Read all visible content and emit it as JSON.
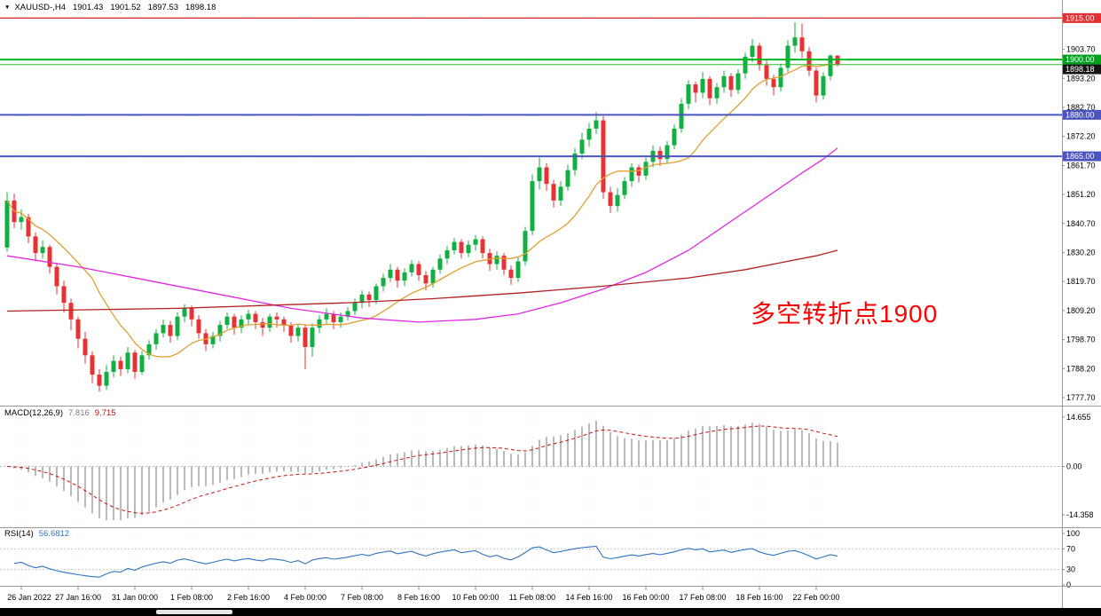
{
  "chart": {
    "title": {
      "triangle": "▼",
      "symbol": "XAUUSD-,H4",
      "open": "1901.43",
      "high": "1901.52",
      "low": "1897.53",
      "close": "1898.18"
    },
    "annotation": {
      "text": "多空转折点1900",
      "color": "#ff0000"
    }
  },
  "chart_data": {
    "type": "candlestick",
    "title": "XAUUSD-,H4",
    "up_color": "#10b040",
    "down_color": "#e63232",
    "y_range": {
      "min": 1776.4,
      "max": 1916.4
    },
    "y_tick_labels": [
      "1903.70",
      "1893.20",
      "1882.70",
      "1872.20",
      "1861.70",
      "1851.20",
      "1840.70",
      "1830.20",
      "1819.70",
      "1809.20",
      "1798.70",
      "1788.20",
      "1777.70"
    ],
    "x_tick_labels": [
      "26 Jan 2022",
      "27 Jan 16:00",
      "31 Jan 00:00",
      "1 Feb 08:00",
      "2 Feb 16:00",
      "4 Feb 00:00",
      "7 Feb 08:00",
      "8 Feb 16:00",
      "10 Feb 00:00",
      "11 Feb 08:00",
      "14 Feb 16:00",
      "16 Feb 00:00",
      "17 Feb 08:00",
      "18 Feb 16:00",
      "22 Feb 00:00"
    ],
    "hlines": [
      {
        "price": 1915.0,
        "label": "1915.00",
        "color": "#e03232",
        "width": 1.4,
        "badge_bg": "#e03232",
        "badge_fg": "#ffffff"
      },
      {
        "price": 1900.0,
        "label": "1900.00",
        "color": "#00b41e",
        "width": 2,
        "badge_bg": "#00a01e",
        "badge_fg": "#ffffff"
      },
      {
        "price": 1898.18,
        "label": "1898.18",
        "color": "#2eb82e",
        "width": 1,
        "badge_bg": "#141414",
        "badge_fg": "#ffffff"
      },
      {
        "price": 1880.0,
        "label": "1880.00",
        "color": "#4a55c0",
        "width": 2,
        "badge_bg": "#4a55c0",
        "badge_fg": "#ffffff"
      },
      {
        "price": 1865.0,
        "label": "1865.00",
        "color": "#4a55c0",
        "width": 2,
        "badge_bg": "#4a55c0",
        "badge_fg": "#ffffff"
      }
    ],
    "ma_lines": [
      {
        "name": "ma-fast",
        "method": "sma",
        "period": 13,
        "color": "#e0a030"
      },
      {
        "name": "ma-mid",
        "color": "#e228e2",
        "points": [
          [
            0,
            1829
          ],
          [
            10,
            1825
          ],
          [
            20,
            1820
          ],
          [
            30,
            1815
          ],
          [
            40,
            1810
          ],
          [
            50,
            1806.5
          ],
          [
            58,
            1805
          ],
          [
            66,
            1806
          ],
          [
            72,
            1808
          ],
          [
            78,
            1812
          ],
          [
            84,
            1817
          ],
          [
            90,
            1823
          ],
          [
            96,
            1831
          ],
          [
            100,
            1838
          ],
          [
            104,
            1845
          ],
          [
            108,
            1852
          ],
          [
            112,
            1859
          ],
          [
            115,
            1864
          ],
          [
            117,
            1868
          ]
        ]
      },
      {
        "name": "ma-slow",
        "color": "#b22222",
        "points": [
          [
            0,
            1809
          ],
          [
            12,
            1809.5
          ],
          [
            24,
            1810
          ],
          [
            36,
            1811
          ],
          [
            48,
            1812
          ],
          [
            60,
            1813.5
          ],
          [
            72,
            1815.5
          ],
          [
            84,
            1818
          ],
          [
            96,
            1821
          ],
          [
            104,
            1824
          ],
          [
            110,
            1827
          ],
          [
            114,
            1829
          ],
          [
            117,
            1831
          ]
        ]
      }
    ],
    "macd": {
      "label": "MACD(12,26,9)",
      "value1": "7.816",
      "value2": "9.715",
      "fast": 12,
      "slow": 26,
      "signal": 9,
      "ylim": 17,
      "hist_color": "#a8a8a8",
      "signal_color": "#cc1111",
      "axis_labels": [
        {
          "text": "14.655",
          "value": 14.655
        },
        {
          "text": "0.00",
          "value": 0
        },
        {
          "text": "-14.358",
          "value": -14.358
        }
      ]
    },
    "rsi": {
      "label": "RSI(14)",
      "value": "56.6812",
      "period": 14,
      "color": "#2f74c0",
      "levels": [
        70,
        30
      ],
      "axis_labels": [
        {
          "text": "100",
          "value": 100
        },
        {
          "text": "70",
          "value": 70
        },
        {
          "text": "30",
          "value": 30
        },
        {
          "text": "0",
          "value": 0
        }
      ]
    },
    "candles": [
      [
        1832.0,
        1852.0,
        1830.5,
        1849.0
      ],
      [
        1849.0,
        1851.5,
        1839.0,
        1841.2
      ],
      [
        1841.2,
        1845.8,
        1838.5,
        1843.0
      ],
      [
        1843.0,
        1844.2,
        1833.5,
        1836.0
      ],
      [
        1836.0,
        1837.5,
        1827.0,
        1830.0
      ],
      [
        1830.0,
        1834.5,
        1828.0,
        1832.2
      ],
      [
        1832.2,
        1833.0,
        1822.5,
        1825.0
      ],
      [
        1825.0,
        1826.5,
        1815.0,
        1818.0
      ],
      [
        1818.0,
        1820.0,
        1808.5,
        1812.0
      ],
      [
        1812.0,
        1813.5,
        1802.0,
        1806.0
      ],
      [
        1806.0,
        1807.0,
        1795.5,
        1799.0
      ],
      [
        1799.0,
        1801.5,
        1790.0,
        1793.0
      ],
      [
        1793.0,
        1794.5,
        1783.0,
        1786.0
      ],
      [
        1786.0,
        1788.0,
        1779.8,
        1782.0
      ],
      [
        1782.0,
        1789.5,
        1780.5,
        1787.0
      ],
      [
        1787.0,
        1793.0,
        1785.0,
        1791.0
      ],
      [
        1791.0,
        1792.5,
        1785.5,
        1788.0
      ],
      [
        1788.0,
        1796.0,
        1786.5,
        1794.0
      ],
      [
        1794.0,
        1795.0,
        1784.5,
        1787.0
      ],
      [
        1787.0,
        1794.5,
        1786.0,
        1793.0
      ],
      [
        1793.0,
        1798.5,
        1791.5,
        1797.0
      ],
      [
        1797.0,
        1802.5,
        1795.0,
        1801.0
      ],
      [
        1801.0,
        1806.0,
        1799.5,
        1804.0
      ],
      [
        1804.0,
        1805.5,
        1797.5,
        1800.0
      ],
      [
        1800.0,
        1808.5,
        1798.5,
        1807.0
      ],
      [
        1807.0,
        1811.5,
        1805.0,
        1810.0
      ],
      [
        1810.0,
        1811.0,
        1803.5,
        1806.0
      ],
      [
        1806.0,
        1807.5,
        1799.0,
        1801.0
      ],
      [
        1801.0,
        1802.5,
        1794.5,
        1797.0
      ],
      [
        1797.0,
        1801.5,
        1795.5,
        1800.0
      ],
      [
        1800.0,
        1805.5,
        1798.0,
        1804.0
      ],
      [
        1804.0,
        1808.5,
        1802.5,
        1807.0
      ],
      [
        1807.0,
        1808.0,
        1800.5,
        1803.0
      ],
      [
        1803.0,
        1807.5,
        1801.0,
        1806.0
      ],
      [
        1806.0,
        1809.5,
        1804.0,
        1808.0
      ],
      [
        1808.0,
        1809.0,
        1802.5,
        1805.0
      ],
      [
        1805.0,
        1806.5,
        1800.0,
        1803.0
      ],
      [
        1803.0,
        1808.0,
        1801.5,
        1807.0
      ],
      [
        1807.0,
        1808.5,
        1803.0,
        1806.0
      ],
      [
        1806.0,
        1807.0,
        1801.5,
        1804.0
      ],
      [
        1804.0,
        1805.0,
        1797.5,
        1800.0
      ],
      [
        1800.0,
        1804.5,
        1798.0,
        1803.0
      ],
      [
        1803.0,
        1804.0,
        1788.0,
        1796.0
      ],
      [
        1796.0,
        1804.5,
        1792.5,
        1803.0
      ],
      [
        1803.0,
        1807.5,
        1801.0,
        1806.0
      ],
      [
        1806.0,
        1810.0,
        1804.5,
        1808.0
      ],
      [
        1808.0,
        1809.0,
        1802.5,
        1805.0
      ],
      [
        1805.0,
        1808.5,
        1803.0,
        1807.0
      ],
      [
        1807.0,
        1810.5,
        1805.5,
        1809.0
      ],
      [
        1809.0,
        1813.5,
        1807.5,
        1812.0
      ],
      [
        1812.0,
        1816.5,
        1810.0,
        1815.0
      ],
      [
        1815.0,
        1816.0,
        1810.5,
        1813.0
      ],
      [
        1813.0,
        1819.0,
        1811.5,
        1818.0
      ],
      [
        1818.0,
        1822.5,
        1816.0,
        1821.0
      ],
      [
        1821.0,
        1826.0,
        1819.5,
        1824.0
      ],
      [
        1824.0,
        1825.0,
        1817.5,
        1820.0
      ],
      [
        1820.0,
        1824.5,
        1818.0,
        1823.0
      ],
      [
        1823.0,
        1827.5,
        1821.5,
        1826.0
      ],
      [
        1826.0,
        1827.0,
        1820.0,
        1822.0
      ],
      [
        1822.0,
        1823.5,
        1816.5,
        1819.0
      ],
      [
        1819.0,
        1825.0,
        1817.5,
        1824.0
      ],
      [
        1824.0,
        1829.5,
        1822.5,
        1828.0
      ],
      [
        1828.0,
        1832.5,
        1826.0,
        1831.0
      ],
      [
        1831.0,
        1835.5,
        1829.5,
        1834.0
      ],
      [
        1834.0,
        1835.0,
        1828.0,
        1830.0
      ],
      [
        1830.0,
        1834.5,
        1828.5,
        1833.0
      ],
      [
        1833.0,
        1836.5,
        1831.0,
        1835.0
      ],
      [
        1835.0,
        1836.0,
        1828.0,
        1830.0
      ],
      [
        1830.0,
        1831.5,
        1823.5,
        1826.0
      ],
      [
        1826.0,
        1830.5,
        1824.0,
        1829.0
      ],
      [
        1829.0,
        1830.0,
        1822.0,
        1824.0
      ],
      [
        1824.0,
        1825.5,
        1818.5,
        1821.0
      ],
      [
        1821.0,
        1828.5,
        1819.5,
        1827.0
      ],
      [
        1827.0,
        1839.5,
        1825.5,
        1838.0
      ],
      [
        1838.0,
        1858.5,
        1836.5,
        1856.0
      ],
      [
        1856.0,
        1864.5,
        1853.0,
        1861.0
      ],
      [
        1861.0,
        1862.5,
        1852.5,
        1855.0
      ],
      [
        1855.0,
        1856.5,
        1846.5,
        1849.0
      ],
      [
        1849.0,
        1856.0,
        1847.0,
        1854.0
      ],
      [
        1854.0,
        1862.0,
        1852.5,
        1860.0
      ],
      [
        1860.0,
        1868.0,
        1858.0,
        1866.0
      ],
      [
        1866.0,
        1873.5,
        1864.0,
        1871.0
      ],
      [
        1871.0,
        1877.0,
        1868.5,
        1875.0
      ],
      [
        1875.0,
        1881.0,
        1873.0,
        1878.0
      ],
      [
        1878.0,
        1879.5,
        1849.5,
        1852.0
      ],
      [
        1852.0,
        1854.0,
        1844.5,
        1847.0
      ],
      [
        1847.0,
        1853.5,
        1845.0,
        1851.0
      ],
      [
        1851.0,
        1857.5,
        1849.5,
        1856.0
      ],
      [
        1856.0,
        1862.5,
        1854.0,
        1861.0
      ],
      [
        1861.0,
        1862.0,
        1855.5,
        1858.0
      ],
      [
        1858.0,
        1864.5,
        1856.5,
        1863.0
      ],
      [
        1863.0,
        1869.0,
        1861.0,
        1867.0
      ],
      [
        1867.0,
        1868.5,
        1861.5,
        1864.0
      ],
      [
        1864.0,
        1870.5,
        1862.5,
        1869.0
      ],
      [
        1869.0,
        1876.5,
        1867.5,
        1875.0
      ],
      [
        1875.0,
        1886.0,
        1873.5,
        1884.0
      ],
      [
        1884.0,
        1892.5,
        1882.0,
        1891.0
      ],
      [
        1891.0,
        1892.0,
        1884.5,
        1888.0
      ],
      [
        1888.0,
        1895.5,
        1886.0,
        1893.0
      ],
      [
        1893.0,
        1894.0,
        1883.5,
        1886.0
      ],
      [
        1886.0,
        1891.5,
        1884.0,
        1890.0
      ],
      [
        1890.0,
        1896.0,
        1888.0,
        1894.0
      ],
      [
        1894.0,
        1895.0,
        1886.5,
        1889.0
      ],
      [
        1889.0,
        1896.5,
        1887.5,
        1895.0
      ],
      [
        1895.0,
        1902.5,
        1893.0,
        1901.0
      ],
      [
        1901.0,
        1907.5,
        1899.0,
        1905.0
      ],
      [
        1905.0,
        1906.0,
        1896.0,
        1898.0
      ],
      [
        1898.0,
        1899.5,
        1890.5,
        1893.0
      ],
      [
        1893.0,
        1894.5,
        1887.0,
        1890.0
      ],
      [
        1890.0,
        1898.5,
        1888.5,
        1897.0
      ],
      [
        1897.0,
        1907.0,
        1895.5,
        1905.0
      ],
      [
        1905.0,
        1913.5,
        1902.5,
        1908.0
      ],
      [
        1908.0,
        1913.0,
        1900.5,
        1903.0
      ],
      [
        1903.0,
        1904.5,
        1894.0,
        1896.0
      ],
      [
        1896.0,
        1897.0,
        1884.5,
        1887.0
      ],
      [
        1887.0,
        1895.5,
        1885.5,
        1894.0
      ],
      [
        1894.0,
        1902.0,
        1892.5,
        1901.4
      ],
      [
        1901.43,
        1901.52,
        1897.53,
        1898.18
      ]
    ]
  }
}
